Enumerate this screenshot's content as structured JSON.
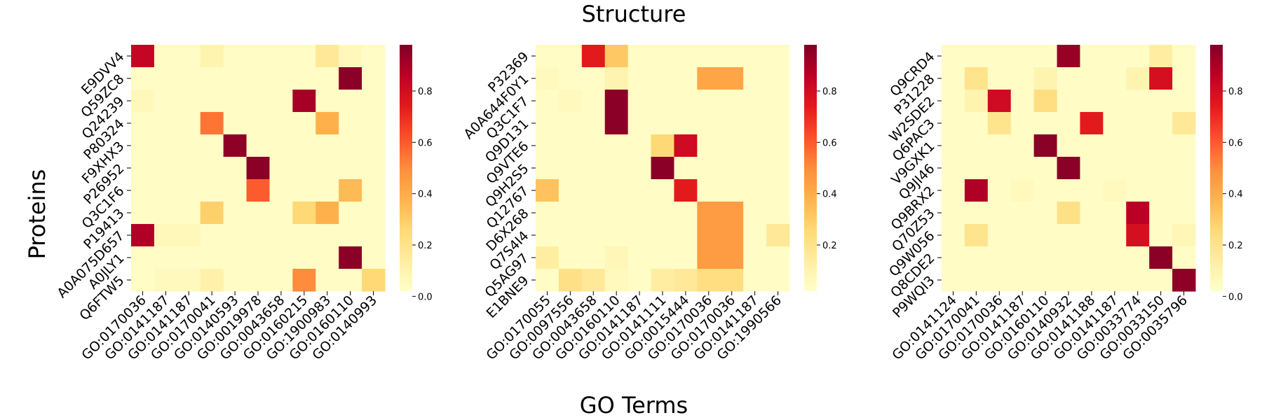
{
  "chart_data": {
    "type": "heatmap",
    "title": "Structure",
    "xlabel": "GO Terms",
    "ylabel": "Proteins",
    "colormap": "YlOrRd",
    "colors": {
      "low": "#ffffcc",
      "high": "#800026"
    },
    "panels": [
      {
        "rows": [
          "E9DVV4",
          "Q59ZC8",
          "Q24239",
          "P80324",
          "F9XHX3",
          "P26952",
          "Q3C1F6",
          "P19413",
          "A0A075D657",
          "A0JLY1",
          "Q6FTW5"
        ],
        "columns": [
          "GO:0170036",
          "GO:0141187",
          "GO:0141187",
          "GO:0170041",
          "GO:0140593",
          "GO:0019978",
          "GO:0043658",
          "GO:0160215",
          "GO:1900983",
          "GO:0160110",
          "GO:0140993"
        ],
        "values": [
          [
            0.85,
            0.02,
            0.02,
            0.08,
            0.02,
            0.02,
            0.02,
            0.02,
            0.15,
            0.05,
            0.02
          ],
          [
            0.02,
            0.02,
            0.02,
            0.02,
            0.02,
            0.02,
            0.02,
            0.02,
            0.02,
            0.98,
            0.02
          ],
          [
            0.05,
            0.02,
            0.02,
            0.02,
            0.02,
            0.02,
            0.02,
            0.92,
            0.02,
            0.02,
            0.02
          ],
          [
            0.02,
            0.02,
            0.02,
            0.55,
            0.02,
            0.02,
            0.02,
            0.02,
            0.38,
            0.02,
            0.02
          ],
          [
            0.02,
            0.02,
            0.02,
            0.02,
            0.97,
            0.02,
            0.02,
            0.02,
            0.02,
            0.02,
            0.02
          ],
          [
            0.02,
            0.02,
            0.02,
            0.02,
            0.02,
            0.98,
            0.02,
            0.02,
            0.02,
            0.02,
            0.02
          ],
          [
            0.02,
            0.02,
            0.02,
            0.02,
            0.02,
            0.6,
            0.02,
            0.02,
            0.02,
            0.35,
            0.02
          ],
          [
            0.02,
            0.02,
            0.02,
            0.28,
            0.02,
            0.02,
            0.02,
            0.25,
            0.38,
            0.02,
            0.02
          ],
          [
            0.9,
            0.05,
            0.05,
            0.02,
            0.02,
            0.02,
            0.02,
            0.02,
            0.02,
            0.02,
            0.02
          ],
          [
            0.02,
            0.02,
            0.02,
            0.02,
            0.02,
            0.02,
            0.02,
            0.02,
            0.02,
            0.98,
            0.02
          ],
          [
            0.02,
            0.04,
            0.04,
            0.1,
            0.02,
            0.02,
            0.02,
            0.5,
            0.02,
            0.02,
            0.25
          ]
        ],
        "colorbar_ticks": [
          0.0,
          0.2,
          0.4,
          0.6,
          0.8
        ]
      },
      {
        "rows": [
          "P32369",
          "A0A644F0Y1",
          "Q3C1F7",
          "Q9D131",
          "Q9VTE6",
          "Q9H2S5",
          "Q12767",
          "D6X268",
          "Q7S4I4",
          "Q5AG97",
          "E1BNE9"
        ],
        "columns": [
          "GO:0170055",
          "GO:0097556",
          "GO:0043658",
          "GO:0160110",
          "GO:0141187",
          "GO:0141111",
          "GO:0015444",
          "GO:0170036",
          "GO:0170036",
          "GO:0141187",
          "GO:1990566"
        ],
        "values": [
          [
            0.02,
            0.02,
            0.75,
            0.3,
            0.02,
            0.02,
            0.02,
            0.02,
            0.02,
            0.02,
            0.02
          ],
          [
            0.04,
            0.02,
            0.02,
            0.08,
            0.02,
            0.02,
            0.02,
            0.42,
            0.42,
            0.02,
            0.02
          ],
          [
            0.02,
            0.04,
            0.02,
            0.98,
            0.02,
            0.02,
            0.02,
            0.02,
            0.02,
            0.02,
            0.02
          ],
          [
            0.02,
            0.02,
            0.02,
            0.98,
            0.02,
            0.02,
            0.02,
            0.02,
            0.02,
            0.02,
            0.02
          ],
          [
            0.02,
            0.02,
            0.02,
            0.02,
            0.02,
            0.25,
            0.82,
            0.02,
            0.02,
            0.02,
            0.02
          ],
          [
            0.02,
            0.02,
            0.02,
            0.02,
            0.02,
            0.98,
            0.02,
            0.02,
            0.02,
            0.02,
            0.02
          ],
          [
            0.32,
            0.02,
            0.02,
            0.02,
            0.02,
            0.02,
            0.75,
            0.02,
            0.02,
            0.02,
            0.02
          ],
          [
            0.02,
            0.02,
            0.02,
            0.02,
            0.02,
            0.02,
            0.02,
            0.45,
            0.45,
            0.02,
            0.02
          ],
          [
            0.02,
            0.02,
            0.02,
            0.02,
            0.02,
            0.02,
            0.02,
            0.45,
            0.45,
            0.02,
            0.15
          ],
          [
            0.12,
            0.02,
            0.02,
            0.06,
            0.02,
            0.02,
            0.02,
            0.45,
            0.45,
            0.02,
            0.02
          ],
          [
            0.02,
            0.2,
            0.15,
            0.04,
            0.02,
            0.12,
            0.15,
            0.22,
            0.22,
            0.02,
            0.02
          ]
        ],
        "colorbar_ticks": [
          0.2,
          0.4,
          0.6,
          0.8
        ]
      },
      {
        "rows": [
          "Q9CRD4",
          "P31228",
          "W2SDE2",
          "Q6PAC3",
          "V9GXK1",
          "Q9JI46",
          "Q9BRX2",
          "Q70Z53",
          "Q9W056",
          "Q8CDE2",
          "P9WQI3"
        ],
        "columns": [
          "GO:0141124",
          "GO:0170041",
          "GO:0170036",
          "GO:0141187",
          "GO:0160110",
          "GO:0140932",
          "GO:0141188",
          "GO:0141187",
          "GO:0033774",
          "GO:0033150",
          "GO:0035796"
        ],
        "values": [
          [
            0.02,
            0.02,
            0.02,
            0.02,
            0.02,
            0.95,
            0.02,
            0.02,
            0.02,
            0.12,
            0.02
          ],
          [
            0.02,
            0.18,
            0.02,
            0.02,
            0.08,
            0.02,
            0.02,
            0.02,
            0.08,
            0.8,
            0.02
          ],
          [
            0.02,
            0.08,
            0.82,
            0.02,
            0.22,
            0.02,
            0.02,
            0.02,
            0.02,
            0.02,
            0.02
          ],
          [
            0.02,
            0.02,
            0.18,
            0.02,
            0.02,
            0.02,
            0.75,
            0.02,
            0.02,
            0.02,
            0.15
          ],
          [
            0.02,
            0.02,
            0.02,
            0.02,
            0.98,
            0.02,
            0.02,
            0.02,
            0.02,
            0.02,
            0.02
          ],
          [
            0.02,
            0.02,
            0.02,
            0.02,
            0.02,
            0.98,
            0.02,
            0.02,
            0.02,
            0.02,
            0.02
          ],
          [
            0.02,
            0.9,
            0.02,
            0.04,
            0.02,
            0.02,
            0.02,
            0.04,
            0.02,
            0.02,
            0.02
          ],
          [
            0.02,
            0.02,
            0.02,
            0.02,
            0.02,
            0.2,
            0.02,
            0.02,
            0.88,
            0.02,
            0.02
          ],
          [
            0.02,
            0.18,
            0.02,
            0.02,
            0.02,
            0.02,
            0.02,
            0.02,
            0.8,
            0.02,
            0.06
          ],
          [
            0.02,
            0.02,
            0.02,
            0.02,
            0.02,
            0.02,
            0.02,
            0.02,
            0.02,
            0.98,
            0.02
          ],
          [
            0.02,
            0.02,
            0.02,
            0.02,
            0.02,
            0.02,
            0.02,
            0.02,
            0.02,
            0.02,
            0.97
          ]
        ],
        "colorbar_ticks": [
          0.0,
          0.2,
          0.4,
          0.6,
          0.8
        ]
      }
    ]
  }
}
